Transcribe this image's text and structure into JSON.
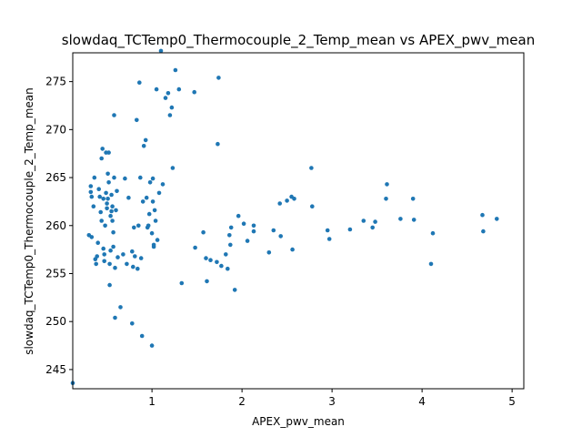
{
  "chart_data": {
    "type": "scatter",
    "title": "slowdaq_TCTemp0_Thermocouple_2_Temp_mean vs APEX_pwv_mean",
    "xlabel": "APEX_pwv_mean",
    "ylabel": "slowdaq_TCTemp0_Thermocouple_2_Temp_mean",
    "xlim": [
      0.12,
      5.13
    ],
    "ylim": [
      243.0,
      278.0
    ],
    "xticks": [
      1,
      2,
      3,
      4,
      5
    ],
    "yticks": [
      245,
      250,
      255,
      260,
      265,
      270,
      275
    ],
    "grid": false,
    "color": "#1f77b4",
    "points": [
      [
        0.12,
        243.6
      ],
      [
        0.3,
        259.0
      ],
      [
        0.33,
        258.8
      ],
      [
        0.32,
        264.1
      ],
      [
        0.32,
        263.5
      ],
      [
        0.33,
        263.0
      ],
      [
        0.35,
        262.0
      ],
      [
        0.36,
        265.0
      ],
      [
        0.37,
        256.5
      ],
      [
        0.38,
        256.0
      ],
      [
        0.39,
        256.8
      ],
      [
        0.4,
        258.2
      ],
      [
        0.41,
        263.8
      ],
      [
        0.42,
        263.0
      ],
      [
        0.43,
        261.4
      ],
      [
        0.44,
        260.5
      ],
      [
        0.44,
        267.0
      ],
      [
        0.45,
        268.0
      ],
      [
        0.46,
        262.8
      ],
      [
        0.46,
        257.6
      ],
      [
        0.47,
        256.3
      ],
      [
        0.47,
        257.0
      ],
      [
        0.48,
        260.0
      ],
      [
        0.49,
        263.4
      ],
      [
        0.49,
        267.6
      ],
      [
        0.5,
        261.8
      ],
      [
        0.5,
        262.3
      ],
      [
        0.51,
        262.8
      ],
      [
        0.51,
        265.4
      ],
      [
        0.52,
        267.6
      ],
      [
        0.52,
        264.5
      ],
      [
        0.53,
        253.8
      ],
      [
        0.53,
        256.0
      ],
      [
        0.54,
        257.4
      ],
      [
        0.54,
        261.0
      ],
      [
        0.55,
        261.5
      ],
      [
        0.55,
        263.2
      ],
      [
        0.56,
        260.5
      ],
      [
        0.56,
        262.0
      ],
      [
        0.57,
        257.8
      ],
      [
        0.57,
        259.3
      ],
      [
        0.58,
        265.0
      ],
      [
        0.58,
        271.5
      ],
      [
        0.59,
        250.4
      ],
      [
        0.59,
        255.6
      ],
      [
        0.6,
        261.6
      ],
      [
        0.61,
        263.6
      ],
      [
        0.62,
        256.7
      ],
      [
        0.65,
        251.5
      ],
      [
        0.68,
        257.0
      ],
      [
        0.7,
        264.9
      ],
      [
        0.72,
        256.0
      ],
      [
        0.74,
        262.9
      ],
      [
        0.78,
        249.8
      ],
      [
        0.78,
        257.3
      ],
      [
        0.79,
        255.7
      ],
      [
        0.8,
        259.8
      ],
      [
        0.81,
        256.8
      ],
      [
        0.83,
        271.0
      ],
      [
        0.84,
        255.5
      ],
      [
        0.85,
        260.0
      ],
      [
        0.86,
        274.9
      ],
      [
        0.87,
        265.0
      ],
      [
        0.88,
        256.6
      ],
      [
        0.89,
        248.5
      ],
      [
        0.9,
        262.5
      ],
      [
        0.91,
        268.3
      ],
      [
        0.93,
        268.9
      ],
      [
        0.94,
        262.9
      ],
      [
        0.95,
        259.8
      ],
      [
        0.96,
        260.0
      ],
      [
        0.97,
        261.2
      ],
      [
        0.98,
        264.5
      ],
      [
        1.0,
        247.5
      ],
      [
        1.0,
        259.2
      ],
      [
        1.01,
        262.5
      ],
      [
        1.01,
        264.9
      ],
      [
        1.02,
        258.0
      ],
      [
        1.02,
        257.8
      ],
      [
        1.03,
        261.6
      ],
      [
        1.04,
        260.5
      ],
      [
        1.05,
        274.2
      ],
      [
        1.06,
        258.5
      ],
      [
        1.08,
        263.4
      ],
      [
        1.1,
        278.2
      ],
      [
        1.12,
        264.3
      ],
      [
        1.15,
        273.3
      ],
      [
        1.18,
        273.8
      ],
      [
        1.2,
        271.5
      ],
      [
        1.22,
        272.3
      ],
      [
        1.23,
        266.0
      ],
      [
        1.26,
        276.2
      ],
      [
        1.3,
        274.2
      ],
      [
        1.33,
        254.0
      ],
      [
        1.47,
        273.9
      ],
      [
        1.48,
        257.7
      ],
      [
        1.57,
        259.3
      ],
      [
        1.6,
        256.6
      ],
      [
        1.61,
        254.2
      ],
      [
        1.65,
        256.4
      ],
      [
        1.72,
        256.2
      ],
      [
        1.73,
        268.5
      ],
      [
        1.74,
        275.4
      ],
      [
        1.77,
        255.8
      ],
      [
        1.82,
        257.0
      ],
      [
        1.84,
        255.5
      ],
      [
        1.86,
        259.0
      ],
      [
        1.87,
        258.0
      ],
      [
        1.88,
        259.8
      ],
      [
        1.92,
        253.3
      ],
      [
        1.96,
        261.0
      ],
      [
        2.02,
        260.2
      ],
      [
        2.06,
        258.4
      ],
      [
        2.13,
        259.4
      ],
      [
        2.13,
        260.0
      ],
      [
        2.3,
        257.2
      ],
      [
        2.35,
        259.5
      ],
      [
        2.42,
        262.3
      ],
      [
        2.43,
        258.9
      ],
      [
        2.5,
        262.6
      ],
      [
        2.55,
        263.0
      ],
      [
        2.56,
        257.5
      ],
      [
        2.58,
        262.8
      ],
      [
        2.77,
        266.0
      ],
      [
        2.78,
        262.0
      ],
      [
        2.95,
        259.5
      ],
      [
        2.97,
        258.6
      ],
      [
        3.2,
        259.6
      ],
      [
        3.35,
        260.5
      ],
      [
        3.45,
        259.8
      ],
      [
        3.48,
        260.4
      ],
      [
        3.6,
        262.8
      ],
      [
        3.61,
        264.3
      ],
      [
        3.76,
        260.7
      ],
      [
        3.9,
        262.8
      ],
      [
        3.91,
        260.6
      ],
      [
        4.1,
        256.0
      ],
      [
        4.12,
        259.2
      ],
      [
        4.67,
        261.1
      ],
      [
        4.68,
        259.4
      ],
      [
        4.83,
        260.7
      ]
    ]
  }
}
